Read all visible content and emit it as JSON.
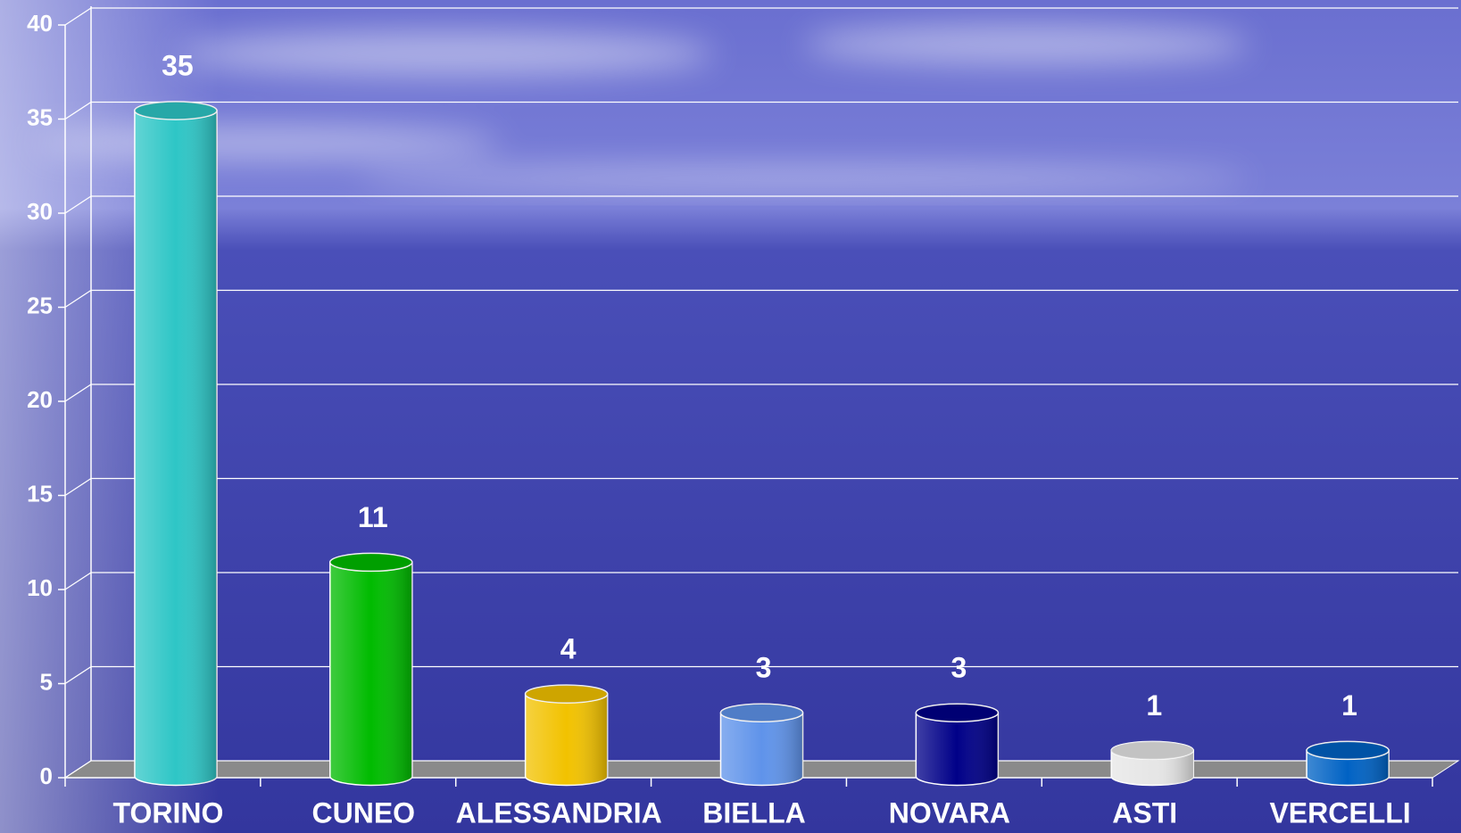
{
  "chart_data": {
    "type": "bar",
    "categories": [
      "TORINO",
      "CUNEO",
      "ALESSANDRIA",
      "BIELLA",
      "NOVARA",
      "ASTI",
      "VERCELLI"
    ],
    "values": [
      35,
      11,
      4,
      3,
      3,
      1,
      1
    ],
    "colors": [
      "#2ec6c6",
      "#00bb00",
      "#f2c200",
      "#5f93ea",
      "#000088",
      "#e6e6e6",
      "#0062c4"
    ],
    "ylim": [
      0,
      40
    ],
    "yticks": [
      0,
      5,
      10,
      15,
      20,
      25,
      30,
      35,
      40
    ],
    "grid": true
  }
}
